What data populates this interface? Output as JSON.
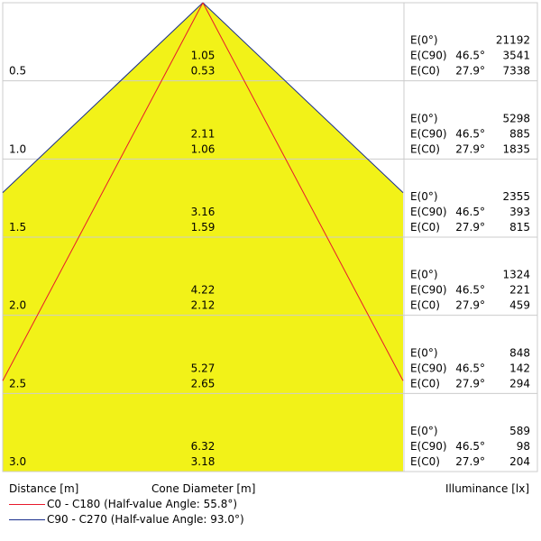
{
  "chart_data": {
    "type": "area",
    "title": "",
    "distance_label": "Distance [m]",
    "diameter_label": "Cone Diameter [m]",
    "illuminance_label": "Illuminance [lx]",
    "rows": [
      {
        "distance": "0.5",
        "d_c90": "1.05",
        "d_c0": "0.53",
        "e0_label": "E(0°)",
        "e0": "21192",
        "c90_label": "E(C90)",
        "c90_angle": "46.5°",
        "c90": "3541",
        "c0_label": "E(C0)",
        "c0_angle": "27.9°",
        "c0": "7338"
      },
      {
        "distance": "1.0",
        "d_c90": "2.11",
        "d_c0": "1.06",
        "e0_label": "E(0°)",
        "e0": "5298",
        "c90_label": "E(C90)",
        "c90_angle": "46.5°",
        "c90": "885",
        "c0_label": "E(C0)",
        "c0_angle": "27.9°",
        "c0": "1835"
      },
      {
        "distance": "1.5",
        "d_c90": "3.16",
        "d_c0": "1.59",
        "e0_label": "E(0°)",
        "e0": "2355",
        "c90_label": "E(C90)",
        "c90_angle": "46.5°",
        "c90": "393",
        "c0_label": "E(C0)",
        "c0_angle": "27.9°",
        "c0": "815"
      },
      {
        "distance": "2.0",
        "d_c90": "4.22",
        "d_c0": "2.12",
        "e0_label": "E(0°)",
        "e0": "1324",
        "c90_label": "E(C90)",
        "c90_angle": "46.5°",
        "c90": "221",
        "c0_label": "E(C0)",
        "c0_angle": "27.9°",
        "c0": "459"
      },
      {
        "distance": "2.5",
        "d_c90": "5.27",
        "d_c0": "2.65",
        "e0_label": "E(0°)",
        "e0": "848",
        "c90_label": "E(C90)",
        "c90_angle": "46.5°",
        "c90": "142",
        "c0_label": "E(C0)",
        "c0_angle": "27.9°",
        "c0": "294"
      },
      {
        "distance": "3.0",
        "d_c90": "6.32",
        "d_c0": "3.18",
        "e0_label": "E(0°)",
        "e0": "589",
        "c90_label": "E(C90)",
        "c90_angle": "46.5°",
        "c90": "98",
        "c0_label": "E(C0)",
        "c0_angle": "27.9°",
        "c0": "204"
      }
    ],
    "series": [
      {
        "name": "C0 - C180 (Half-value Angle: 55.8°)",
        "color": "#e8192c"
      },
      {
        "name": "C90 - C270 (Half-value Angle: 93.0°)",
        "color": "#1a2e8c"
      }
    ],
    "cone_fill": "#f2f218"
  }
}
